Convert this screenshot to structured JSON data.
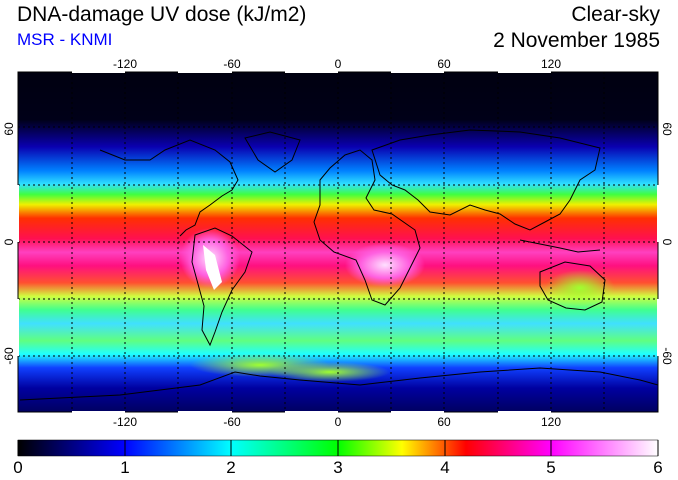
{
  "header": {
    "title": "DNA-damage UV dose (kJ/m2)",
    "source": "MSR - KNMI",
    "condition": "Clear-sky",
    "date": "2 November 1985"
  },
  "map": {
    "longitude_ticks": [
      "-120",
      "-60",
      "0",
      "60",
      "120"
    ],
    "latitude_ticks_left": [
      "60",
      "0",
      "-60"
    ],
    "latitude_ticks_right": [
      "60",
      "0",
      "-60"
    ],
    "grid": "dashed 30-degree graticule",
    "colors": {
      "background": "#000020",
      "coast": "#000000",
      "grid": "#000000"
    }
  },
  "colorbar": {
    "labels": [
      "0",
      "1",
      "2",
      "3",
      "4",
      "5",
      "6"
    ],
    "stops": [
      "#000000",
      "#0000ff",
      "#00ffff",
      "#00ff00",
      "#ffff00",
      "#ff0000",
      "#ff00ff",
      "#ffffff"
    ]
  }
}
